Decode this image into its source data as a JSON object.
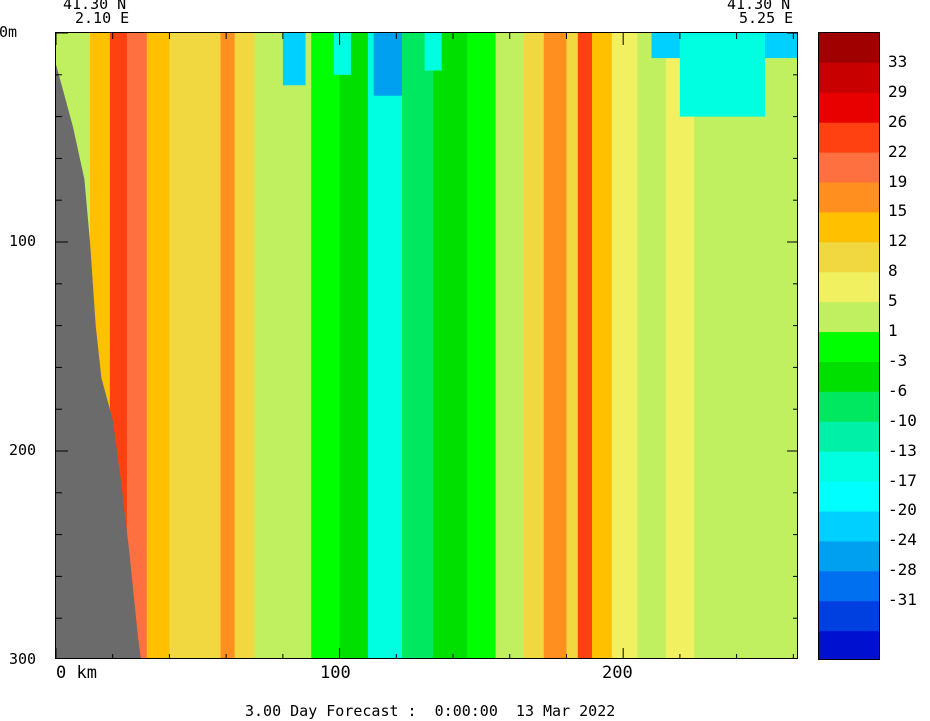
{
  "header": {
    "left_lat": "41.30 N",
    "left_lon": "2.10 E",
    "right_lat": "41.30 N",
    "right_lon": "5.25 E"
  },
  "footer": {
    "forecast": "3.00 Day Forecast :  0:00:00  13 Mar 2022"
  },
  "colors": {
    "land": "#6b6b6b",
    "background": "#00ee00"
  },
  "chart_data": {
    "type": "heatmap",
    "title": "",
    "xlabel": "",
    "ylabel": "",
    "xlim": [
      0,
      262
    ],
    "ylim": [
      300,
      0
    ],
    "x_ticks": [
      {
        "value": 0,
        "label": "0 km"
      },
      {
        "value": 100,
        "label": "100"
      },
      {
        "value": 200,
        "label": "200"
      }
    ],
    "y_ticks": [
      {
        "value": 0,
        "label": "0m"
      },
      {
        "value": 100,
        "label": "100"
      },
      {
        "value": 200,
        "label": "200"
      },
      {
        "value": 300,
        "label": "300"
      }
    ],
    "colorbar": {
      "labels": [
        "33",
        "29",
        "26",
        "22",
        "19",
        "15",
        "12",
        "8",
        "5",
        "1",
        "-3",
        "-6",
        "-10",
        "-13",
        "-17",
        "-20",
        "-24",
        "-28",
        "-31"
      ],
      "colors": [
        "#a00000",
        "#c80000",
        "#e80000",
        "#ff4010",
        "#ff7040",
        "#ff9020",
        "#ffc000",
        "#f2d840",
        "#f0f060",
        "#c0f060",
        "#00ff00",
        "#00e000",
        "#00e860",
        "#00f0a8",
        "#00ffe0",
        "#00ffff",
        "#00d0ff",
        "#00a0f0",
        "#0070f0",
        "#0040e0",
        "#0010d0"
      ]
    },
    "bands": [
      {
        "x_start": 0,
        "x_end": 5,
        "value": 1
      },
      {
        "x_start": 5,
        "x_end": 12,
        "value": 2
      },
      {
        "x_start": 12,
        "x_end": 19,
        "value": 14
      },
      {
        "x_start": 19,
        "x_end": 25,
        "value": 24
      },
      {
        "x_start": 25,
        "x_end": 32,
        "value": 20
      },
      {
        "x_start": 32,
        "x_end": 40,
        "value": 14
      },
      {
        "x_start": 40,
        "x_end": 52,
        "value": 8
      },
      {
        "x_start": 52,
        "x_end": 58,
        "value": 10
      },
      {
        "x_start": 58,
        "x_end": 63,
        "value": 17
      },
      {
        "x_start": 63,
        "x_end": 70,
        "value": 10
      },
      {
        "x_start": 70,
        "x_end": 80,
        "value": 2
      },
      {
        "x_start": 80,
        "x_end": 90,
        "value": 4
      },
      {
        "x_start": 90,
        "x_end": 100,
        "value": -2
      },
      {
        "x_start": 100,
        "x_end": 110,
        "value": -5
      },
      {
        "x_start": 110,
        "x_end": 122,
        "value": -14
      },
      {
        "x_start": 122,
        "x_end": 133,
        "value": -10
      },
      {
        "x_start": 133,
        "x_end": 145,
        "value": -4
      },
      {
        "x_start": 145,
        "x_end": 155,
        "value": -2
      },
      {
        "x_start": 155,
        "x_end": 165,
        "value": 2
      },
      {
        "x_start": 165,
        "x_end": 172,
        "value": 10
      },
      {
        "x_start": 172,
        "x_end": 180,
        "value": 17
      },
      {
        "x_start": 180,
        "x_end": 184,
        "value": 11
      },
      {
        "x_start": 184,
        "x_end": 189,
        "value": 24
      },
      {
        "x_start": 189,
        "x_end": 196,
        "value": 12
      },
      {
        "x_start": 196,
        "x_end": 205,
        "value": 6
      },
      {
        "x_start": 205,
        "x_end": 215,
        "value": 3
      },
      {
        "x_start": 215,
        "x_end": 225,
        "value": 5
      },
      {
        "x_start": 225,
        "x_end": 240,
        "value": 3
      },
      {
        "x_start": 240,
        "x_end": 252,
        "value": 1
      },
      {
        "x_start": 252,
        "x_end": 262,
        "value": 2
      }
    ],
    "surface_features": [
      {
        "x_start": 80,
        "x_end": 88,
        "depth": 25,
        "value": -22
      },
      {
        "x_start": 98,
        "x_end": 104,
        "depth": 20,
        "value": -15
      },
      {
        "x_start": 112,
        "x_end": 122,
        "depth": 30,
        "value": -27
      },
      {
        "x_start": 130,
        "x_end": 136,
        "depth": 18,
        "value": -15
      },
      {
        "x_start": 210,
        "x_end": 262,
        "depth": 12,
        "value": -24
      },
      {
        "x_start": 220,
        "x_end": 250,
        "depth": 40,
        "value": -15
      }
    ],
    "land_profile": [
      {
        "x": 0,
        "depth": 15
      },
      {
        "x": 2,
        "depth": 25
      },
      {
        "x": 6,
        "depth": 45
      },
      {
        "x": 10,
        "depth": 70
      },
      {
        "x": 12,
        "depth": 100
      },
      {
        "x": 14,
        "depth": 140
      },
      {
        "x": 16,
        "depth": 165
      },
      {
        "x": 20,
        "depth": 185
      },
      {
        "x": 23,
        "depth": 215
      },
      {
        "x": 26,
        "depth": 250
      },
      {
        "x": 29,
        "depth": 290
      },
      {
        "x": 30,
        "depth": 300
      }
    ]
  }
}
